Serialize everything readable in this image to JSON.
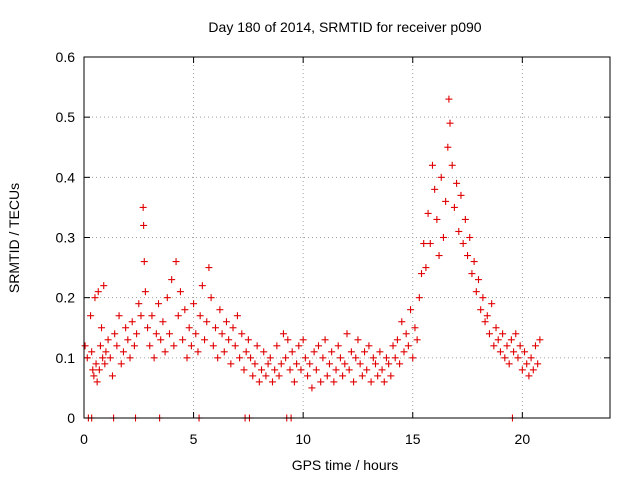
{
  "chart_data": {
    "type": "scatter",
    "title": "Day 180 of 2014, SRMTID for receiver p090",
    "xlabel": "GPS time / hours",
    "ylabel": "SRMTID / TECUs",
    "xlim": [
      0,
      24
    ],
    "ylim": [
      0,
      0.6
    ],
    "x_ticks": [
      0,
      5,
      10,
      15,
      20
    ],
    "x_tick_labels": [
      "0",
      "5",
      "10",
      "15",
      "20"
    ],
    "y_ticks": [
      0,
      0.1,
      0.2,
      0.3,
      0.4,
      0.5,
      0.6
    ],
    "y_tick_labels": [
      "0",
      "0.1",
      "0.2",
      "0.3",
      "0.4",
      "0.5",
      "0.6"
    ],
    "grid": true,
    "marker": "plus",
    "color": "#e00000",
    "series": [
      {
        "name": "p090",
        "x": [
          0.05,
          0.15,
          0.3,
          0.35,
          0.4,
          0.45,
          0.5,
          0.55,
          0.6,
          0.65,
          0.7,
          0.75,
          0.8,
          0.85,
          0.9,
          0.95,
          1.0,
          1.1,
          1.2,
          1.3,
          1.4,
          1.5,
          1.6,
          1.7,
          1.8,
          1.9,
          2.0,
          2.1,
          2.2,
          2.3,
          2.4,
          2.5,
          2.6,
          2.7,
          2.72,
          2.75,
          2.8,
          2.9,
          3.0,
          3.1,
          3.2,
          3.3,
          3.4,
          3.5,
          3.6,
          3.7,
          3.8,
          3.9,
          4.0,
          4.1,
          4.2,
          4.3,
          4.4,
          4.5,
          4.6,
          4.7,
          4.8,
          4.9,
          5.0,
          5.1,
          5.2,
          5.3,
          5.4,
          5.5,
          5.6,
          5.7,
          5.8,
          5.9,
          6.0,
          6.1,
          6.2,
          6.3,
          6.4,
          6.5,
          6.6,
          6.7,
          6.8,
          6.9,
          7.0,
          7.1,
          7.2,
          7.3,
          7.4,
          7.5,
          7.6,
          7.7,
          7.8,
          7.9,
          8.0,
          8.1,
          8.2,
          8.3,
          8.4,
          8.5,
          8.6,
          8.7,
          8.8,
          8.9,
          9.0,
          9.1,
          9.2,
          9.3,
          9.4,
          9.5,
          9.6,
          9.7,
          9.8,
          9.9,
          10.0,
          10.1,
          10.2,
          10.3,
          10.4,
          10.5,
          10.6,
          10.7,
          10.8,
          10.9,
          11.0,
          11.1,
          11.2,
          11.3,
          11.4,
          11.5,
          11.6,
          11.7,
          11.8,
          11.9,
          12.0,
          12.1,
          12.2,
          12.3,
          12.4,
          12.5,
          12.6,
          12.7,
          12.8,
          12.9,
          13.0,
          13.1,
          13.2,
          13.3,
          13.4,
          13.5,
          13.6,
          13.7,
          13.8,
          13.9,
          14.0,
          14.1,
          14.2,
          14.3,
          14.4,
          14.5,
          14.6,
          14.7,
          14.8,
          14.9,
          15.0,
          15.1,
          15.2,
          15.3,
          15.4,
          15.5,
          15.6,
          15.7,
          15.8,
          15.9,
          16.0,
          16.1,
          16.2,
          16.3,
          16.4,
          16.5,
          16.6,
          16.65,
          16.7,
          16.8,
          16.9,
          17.0,
          17.1,
          17.2,
          17.3,
          17.4,
          17.5,
          17.6,
          17.7,
          17.8,
          17.9,
          18.0,
          18.1,
          18.2,
          18.3,
          18.4,
          18.5,
          18.6,
          18.7,
          18.8,
          18.9,
          19.0,
          19.1,
          19.2,
          19.3,
          19.4,
          19.5,
          19.6,
          19.7,
          19.8,
          19.9,
          20.0,
          20.1,
          20.2,
          20.3,
          20.4,
          20.5,
          20.6,
          20.7,
          20.8
        ],
        "y": [
          0.12,
          0.1,
          0.17,
          0.11,
          0.08,
          0.07,
          0.2,
          0.09,
          0.06,
          0.21,
          0.08,
          0.12,
          0.15,
          0.1,
          0.22,
          0.09,
          0.11,
          0.13,
          0.1,
          0.07,
          0.14,
          0.12,
          0.17,
          0.09,
          0.11,
          0.15,
          0.13,
          0.1,
          0.16,
          0.12,
          0.14,
          0.19,
          0.17,
          0.35,
          0.32,
          0.26,
          0.21,
          0.15,
          0.12,
          0.17,
          0.1,
          0.14,
          0.19,
          0.13,
          0.16,
          0.11,
          0.2,
          0.14,
          0.23,
          0.12,
          0.26,
          0.17,
          0.21,
          0.13,
          0.18,
          0.1,
          0.15,
          0.12,
          0.19,
          0.14,
          0.11,
          0.17,
          0.22,
          0.13,
          0.16,
          0.25,
          0.2,
          0.12,
          0.15,
          0.1,
          0.18,
          0.14,
          0.11,
          0.16,
          0.13,
          0.09,
          0.15,
          0.12,
          0.17,
          0.1,
          0.14,
          0.08,
          0.11,
          0.13,
          0.1,
          0.07,
          0.09,
          0.12,
          0.06,
          0.08,
          0.11,
          0.07,
          0.09,
          0.1,
          0.06,
          0.08,
          0.12,
          0.07,
          0.09,
          0.14,
          0.1,
          0.13,
          0.08,
          0.11,
          0.06,
          0.09,
          0.12,
          0.08,
          0.13,
          0.1,
          0.07,
          0.09,
          0.05,
          0.11,
          0.08,
          0.12,
          0.06,
          0.1,
          0.13,
          0.07,
          0.09,
          0.11,
          0.06,
          0.08,
          0.12,
          0.1,
          0.07,
          0.09,
          0.14,
          0.08,
          0.11,
          0.06,
          0.1,
          0.13,
          0.09,
          0.07,
          0.11,
          0.08,
          0.12,
          0.06,
          0.1,
          0.09,
          0.07,
          0.11,
          0.08,
          0.06,
          0.1,
          0.09,
          0.07,
          0.12,
          0.1,
          0.13,
          0.09,
          0.16,
          0.11,
          0.14,
          0.12,
          0.18,
          0.1,
          0.15,
          0.13,
          0.2,
          0.24,
          0.29,
          0.25,
          0.34,
          0.29,
          0.42,
          0.38,
          0.33,
          0.27,
          0.4,
          0.3,
          0.36,
          0.45,
          0.53,
          0.49,
          0.42,
          0.35,
          0.39,
          0.31,
          0.37,
          0.29,
          0.33,
          0.27,
          0.3,
          0.24,
          0.26,
          0.21,
          0.23,
          0.18,
          0.2,
          0.16,
          0.17,
          0.14,
          0.19,
          0.12,
          0.15,
          0.13,
          0.11,
          0.14,
          0.1,
          0.12,
          0.09,
          0.13,
          0.11,
          0.14,
          0.1,
          0.12,
          0.08,
          0.11,
          0.09,
          0.07,
          0.1,
          0.08,
          0.12,
          0.09,
          0.13
        ],
        "zero_x": [
          0.2,
          0.35,
          1.35,
          2.35,
          3.45,
          5.25,
          7.35,
          7.55,
          9.25,
          9.45,
          19.55
        ]
      }
    ]
  }
}
